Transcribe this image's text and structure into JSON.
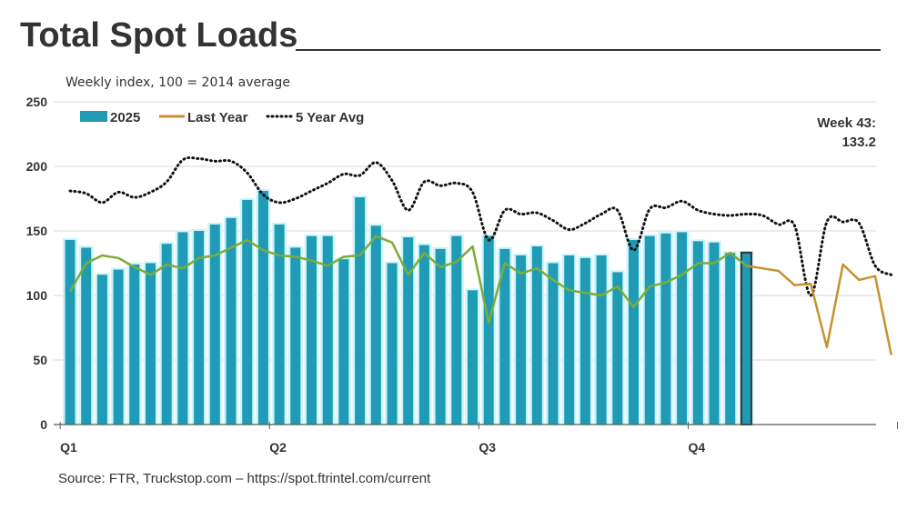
{
  "title": "Total Spot Loads",
  "subtitle": "Weekly index, 100 = 2014 average",
  "source": "Source: FTR, Truckstop.com – https://spot.ftrintel.com/current",
  "annotation": {
    "line1": "Week 43:",
    "line2": "133.2"
  },
  "colors": {
    "bars": "#1f9bb5",
    "bar_glow": "#ccf5fa",
    "highlight_outline": "#333333",
    "last_year": "#c8912f",
    "overlap": "#7dab3c",
    "five_year": "#111111",
    "grid": "#d9d9d9"
  },
  "chart_data": {
    "type": "bar",
    "xlim": [
      1,
      53
    ],
    "ylim": [
      0,
      250
    ],
    "yticks": [
      0,
      50,
      100,
      150,
      200,
      250
    ],
    "quarters": [
      {
        "label": "Q1",
        "week": 1
      },
      {
        "label": "Q2",
        "week": 14
      },
      {
        "label": "Q3",
        "week": 27
      },
      {
        "label": "Q4",
        "week": 40
      }
    ],
    "legend": {
      "placement": "top-left",
      "entries": [
        "2025",
        "Last Year",
        "5 Year Avg"
      ]
    },
    "grid": true,
    "highlight_week": 43,
    "series": [
      {
        "name": "2025",
        "type": "bar",
        "values": [
          143,
          137,
          116,
          120,
          124,
          125,
          140,
          149,
          150,
          155,
          160,
          174,
          181,
          155,
          137,
          146,
          146,
          128,
          176,
          154,
          125,
          145,
          139,
          136,
          146,
          104,
          146,
          136,
          131,
          138,
          125,
          131,
          129,
          131,
          118,
          143,
          146,
          148,
          149,
          142,
          141,
          133,
          133.2
        ]
      },
      {
        "name": "Last Year",
        "type": "line",
        "values": [
          103,
          125,
          131,
          129,
          122,
          116,
          124,
          121,
          129,
          131,
          137,
          143,
          135,
          131,
          130,
          127,
          123,
          130,
          131,
          146,
          141,
          116,
          133,
          122,
          126,
          138,
          79,
          125,
          117,
          121,
          112,
          104,
          102,
          100,
          107,
          91,
          107,
          110,
          116,
          125,
          125,
          133,
          123,
          121,
          119,
          108,
          109,
          60,
          124,
          112,
          115,
          54
        ]
      },
      {
        "name": "5 Year Avg",
        "type": "line",
        "values": [
          181,
          179,
          172,
          180,
          176,
          180,
          188,
          205,
          206,
          204,
          204,
          195,
          178,
          172,
          175,
          181,
          187,
          194,
          193,
          203,
          189,
          166,
          188,
          185,
          187,
          180,
          143,
          166,
          163,
          164,
          158,
          151,
          156,
          163,
          166,
          135,
          167,
          168,
          173,
          166,
          163,
          162,
          163,
          162,
          155,
          154,
          100,
          157,
          157,
          156,
          123,
          116
        ]
      }
    ]
  }
}
